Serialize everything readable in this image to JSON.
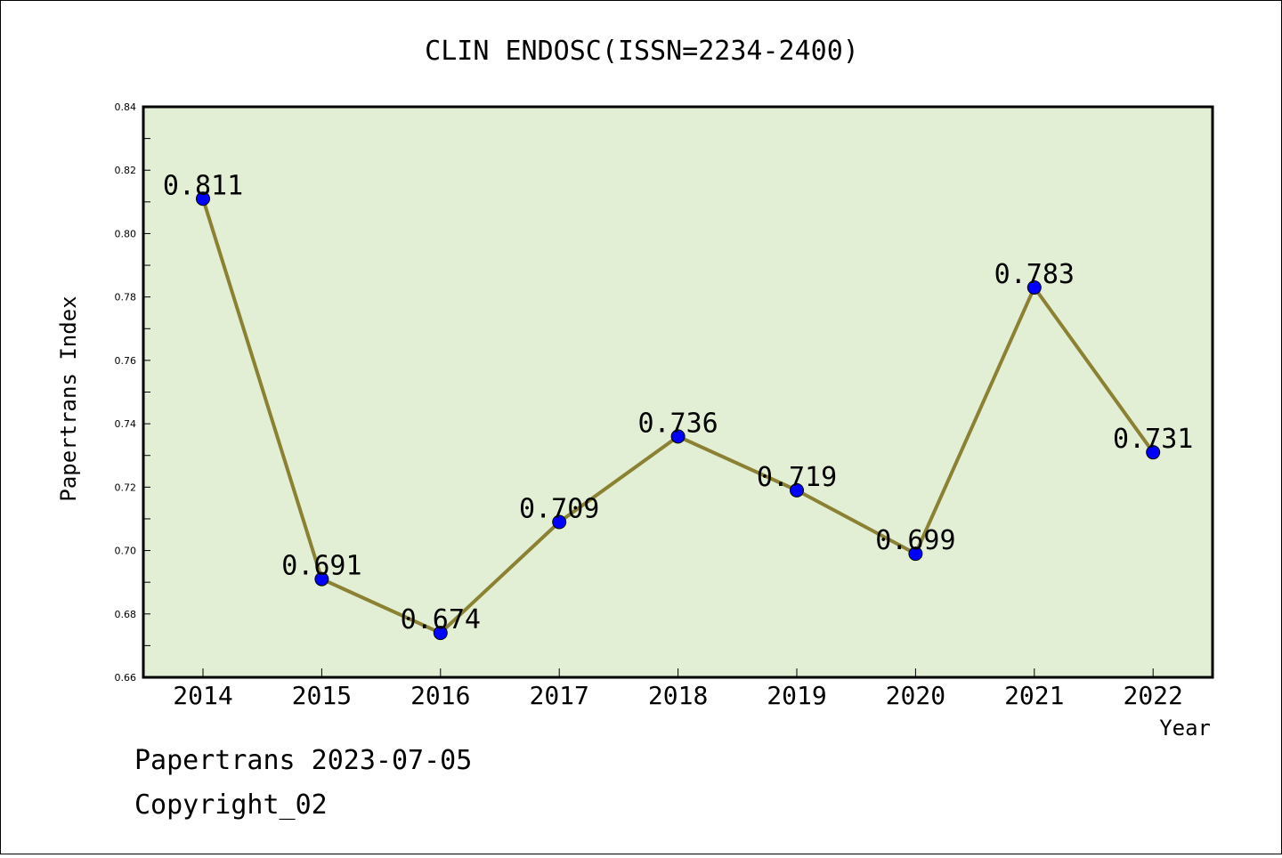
{
  "chart_data": {
    "type": "line",
    "title": "CLIN ENDOSC(ISSN=2234-2400)",
    "xlabel": "Year",
    "ylabel": "Papertrans Index",
    "categories": [
      "2014",
      "2015",
      "2016",
      "2017",
      "2018",
      "2019",
      "2020",
      "2021",
      "2022"
    ],
    "series": [
      {
        "values": [
          0.811,
          0.691,
          0.674,
          0.709,
          0.736,
          0.719,
          0.699,
          0.783,
          0.731
        ],
        "labels": [
          "0.811",
          "0.691",
          "0.674",
          "0.709",
          "0.736",
          "0.719",
          "0.699",
          "0.783",
          "0.731"
        ]
      }
    ],
    "ylim": [
      0.66,
      0.84
    ],
    "yticks": [
      "0.66",
      "0.68",
      "0.70",
      "0.72",
      "0.74",
      "0.76",
      "0.78",
      "0.80",
      "0.82",
      "0.84"
    ],
    "grid": false,
    "legend": "none",
    "colors": {
      "plot_background": "#e2efd5",
      "line": "#8b8133",
      "marker": "#0000ff"
    }
  },
  "footer": {
    "line1": "Papertrans 2023-07-05",
    "line2": "Copyright_02"
  }
}
